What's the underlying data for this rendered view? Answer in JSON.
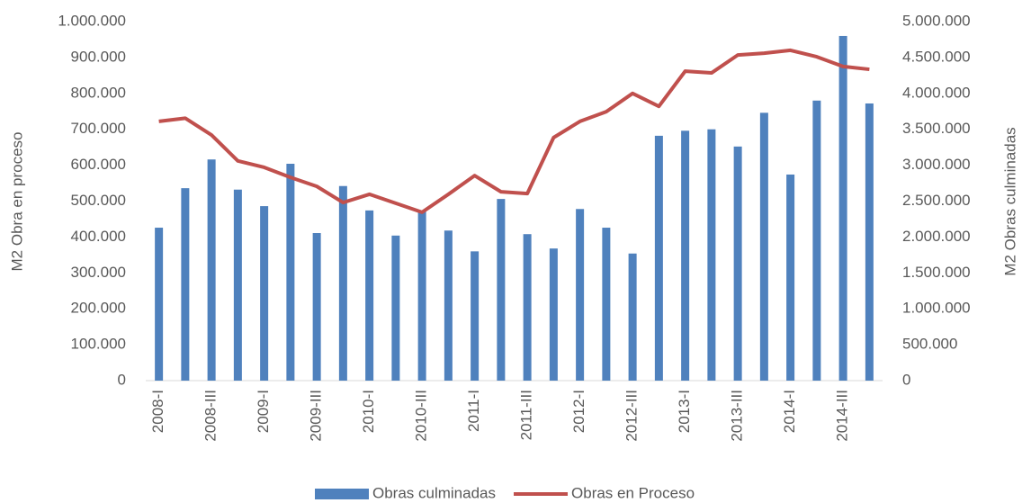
{
  "chart_data": {
    "type": "bar_line",
    "categories": [
      "2008-I",
      null,
      "2008-III",
      null,
      "2009-I",
      null,
      "2009-III",
      null,
      "2010-I",
      null,
      "2010-III",
      null,
      "2011-I",
      null,
      "2011-III",
      null,
      "2012-I",
      null,
      "2012-III",
      null,
      "2013-I",
      null,
      "2013-III",
      null,
      "2014-I",
      null,
      "2014-III",
      null
    ],
    "y_label": "M2 Obra en proceso",
    "y2_label": "M2 Obras culminadas",
    "ylim": [
      0,
      1000000
    ],
    "yticks": [
      0,
      {
        "value": 100000,
        "label": "100.000"
      },
      {
        "value": 200000,
        "label": "200.000"
      },
      {
        "value": 300000,
        "label": "300.000"
      },
      {
        "value": 400000,
        "label": "400.000"
      },
      {
        "value": 500000,
        "label": "500.000"
      },
      {
        "value": 600000,
        "label": "600.000"
      },
      {
        "value": 700000,
        "label": "700.000"
      },
      {
        "value": 800000,
        "label": "800.000"
      },
      {
        "value": 900000,
        "label": "900.000"
      },
      {
        "value": 1000000,
        "label": "1.000.000"
      }
    ],
    "y2lim": [
      0,
      5000000
    ],
    "y2ticks": [
      0,
      {
        "value": 500000,
        "label": "500.000"
      },
      {
        "value": 1000000,
        "label": "1.000.000"
      },
      {
        "value": 1500000,
        "label": "1.500.000"
      },
      {
        "value": 2000000,
        "label": "2.000.000"
      },
      {
        "value": 2500000,
        "label": "2.500.000"
      },
      {
        "value": 3000000,
        "label": "3.000.000"
      },
      {
        "value": 3500000,
        "label": "3.500.000"
      },
      {
        "value": 4000000,
        "label": "4.000.000"
      },
      {
        "value": 4500000,
        "label": "4.500.000"
      },
      {
        "value": 5000000,
        "label": "5.000.000"
      }
    ],
    "series": [
      {
        "name": "Obras culminadas",
        "kind": "bar",
        "axis": "y2",
        "color": "#4f81bd",
        "values": [
          2130000,
          2680000,
          3080000,
          2660000,
          2430000,
          3020000,
          2055000,
          2710000,
          2370000,
          2020000,
          2360000,
          2090000,
          1800000,
          2530000,
          2040000,
          1840000,
          2390000,
          2130000,
          1770000,
          3410000,
          3480000,
          3500000,
          3260000,
          3730000,
          2870000,
          3900000,
          4800000,
          3860000
        ]
      },
      {
        "name": "Obras en Proceso",
        "kind": "line",
        "axis": "y",
        "color": "#c0504d",
        "values": [
          722000,
          731000,
          684000,
          612000,
          594000,
          566000,
          541000,
          496000,
          519000,
          494000,
          469000,
          519000,
          571000,
          526000,
          521000,
          677000,
          722000,
          749000,
          800000,
          764000,
          862000,
          857000,
          907000,
          912000,
          920000,
          902000,
          875000,
          867000
        ]
      }
    ],
    "legend": "bottom"
  }
}
